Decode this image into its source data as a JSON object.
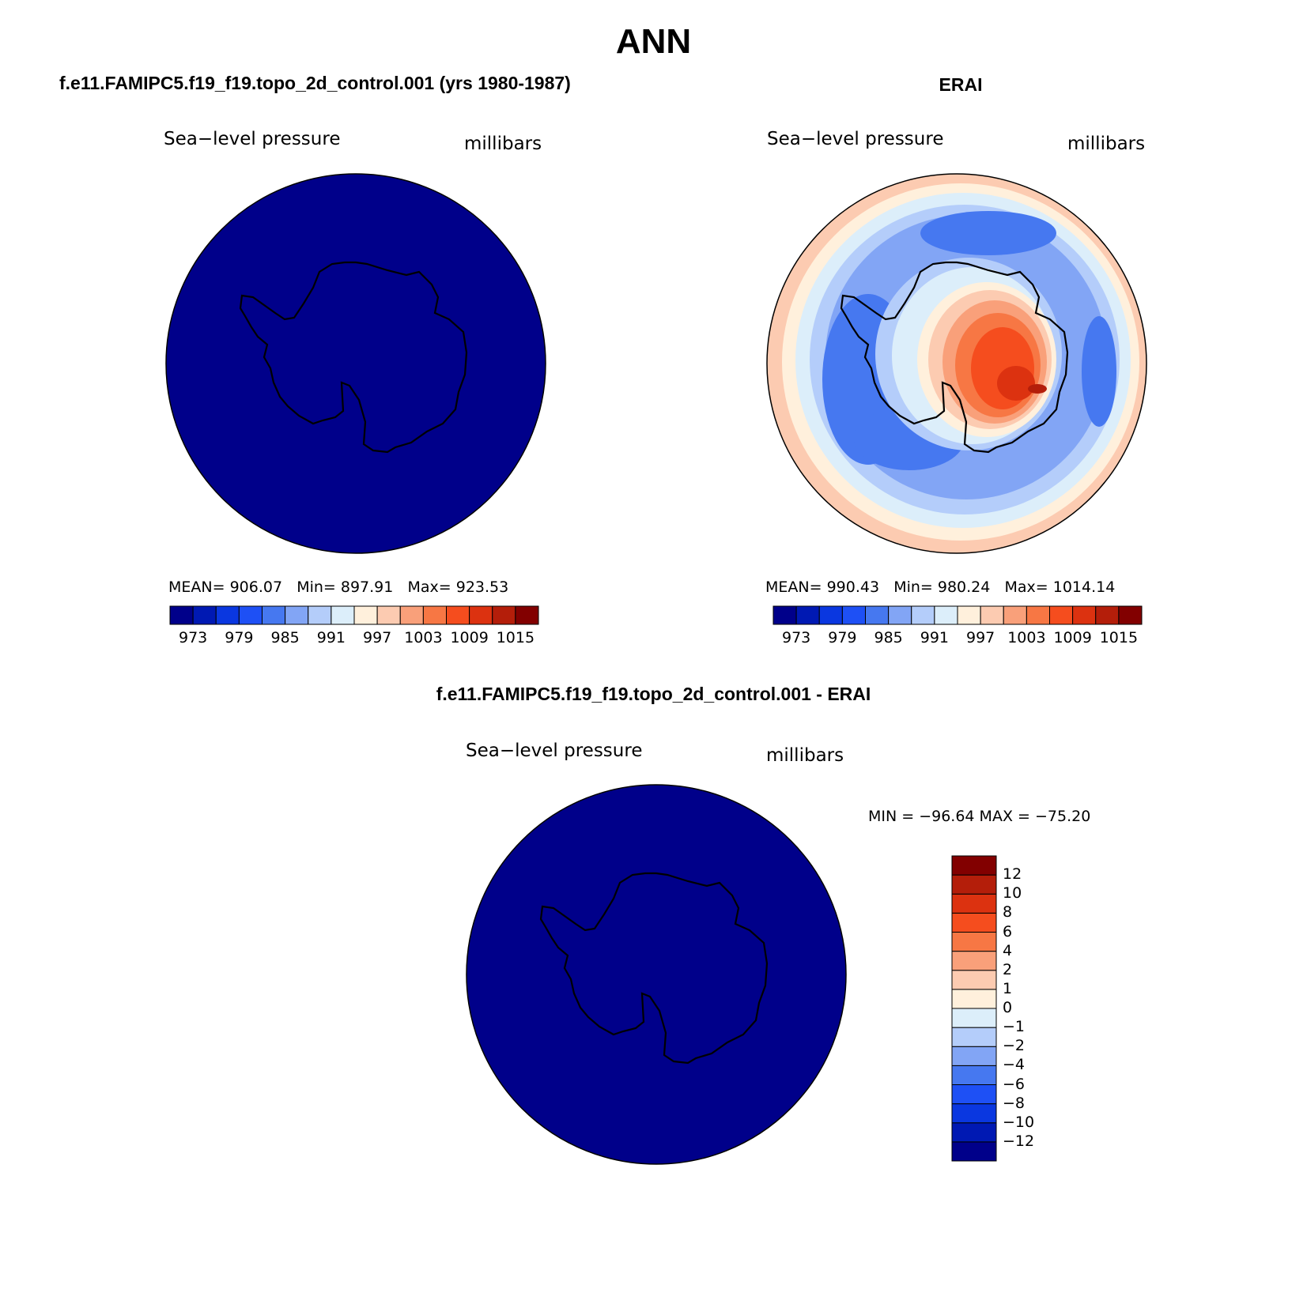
{
  "season": "ANN",
  "panels": {
    "model": {
      "title": "f.e11.FAMIPC5.f19_f19.topo_2d_control.001 (yrs 1980-1987)",
      "variable": "Sea−level pressure",
      "units": "millibars",
      "stats": {
        "mean_label": "MEAN=",
        "mean": "906.07",
        "min_label": "Min=",
        "min": "897.91",
        "max_label": "Max=",
        "max": "923.53"
      }
    },
    "obs": {
      "title": "ERAI",
      "variable": "Sea−level pressure",
      "units": "millibars",
      "stats": {
        "mean_label": "MEAN=",
        "mean": "990.43",
        "min_label": "Min=",
        "min": "980.24",
        "max_label": "Max=",
        "max": "1014.14"
      }
    },
    "diff": {
      "title": "f.e11.FAMIPC5.f19_f19.topo_2d_control.001 - ERAI",
      "variable": "Sea−level pressure",
      "units": "millibars",
      "range_text": "MIN = −96.64  MAX = −75.20"
    }
  },
  "colorbar_abs": {
    "colors": [
      "#00008a",
      "#0019b3",
      "#0a37e0",
      "#1e50f5",
      "#4678f0",
      "#82a5f5",
      "#b4cdfa",
      "#dceefa",
      "#fff0dc",
      "#fccbb1",
      "#f9a07a",
      "#f77744",
      "#f54d1e",
      "#dc3210",
      "#b41e0a",
      "#820000"
    ],
    "labels": [
      "973",
      "979",
      "985",
      "991",
      "997",
      "1003",
      "1009",
      "1015"
    ]
  },
  "colorbar_diff": {
    "colors": [
      "#00008a",
      "#0019b3",
      "#0a37e0",
      "#1e50f5",
      "#4678f0",
      "#82a5f5",
      "#b4cdfa",
      "#dceefa",
      "#fff0dc",
      "#fccbb1",
      "#f9a07a",
      "#f77744",
      "#f54d1e",
      "#dc3210",
      "#b41e0a",
      "#820000"
    ],
    "labels": [
      "12",
      "10",
      "8",
      "6",
      "4",
      "2",
      "1",
      "0",
      "−1",
      "−2",
      "−4",
      "−6",
      "−8",
      "−10",
      "−12"
    ]
  },
  "map_colors": {
    "uniform_fill": "#00008a",
    "coast": "#000000"
  }
}
